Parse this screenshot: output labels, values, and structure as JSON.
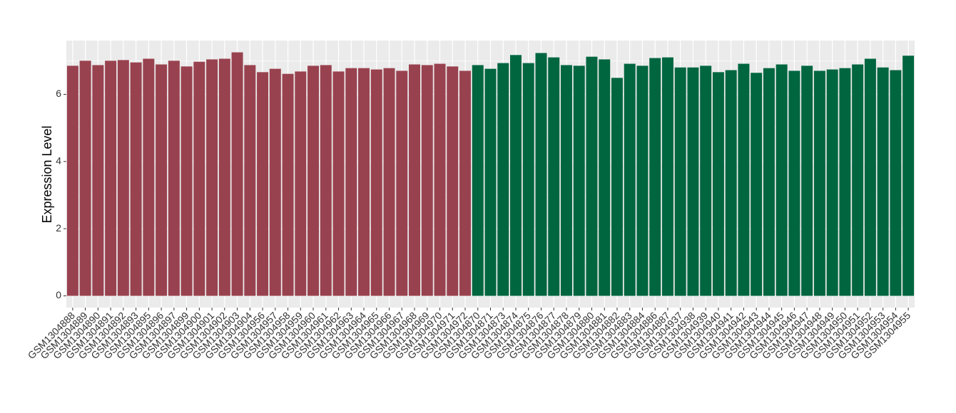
{
  "chart_data": {
    "type": "bar",
    "y_label": "Expression Level",
    "groups": [
      {
        "color": "#99424f",
        "categories": [
          "GSM1304888",
          "GSM1304889",
          "GSM1304890",
          "GSM1304891",
          "GSM1304892",
          "GSM1304893",
          "GSM1304895",
          "GSM1304896",
          "GSM1304897",
          "GSM1304899",
          "GSM1304900",
          "GSM1304901",
          "GSM1304902",
          "GSM1304903",
          "GSM1304904",
          "GSM1304956",
          "GSM1304957",
          "GSM1304958",
          "GSM1304959",
          "GSM1304960",
          "GSM1304961",
          "GSM1304962",
          "GSM1304963",
          "GSM1304964",
          "GSM1304965",
          "GSM1304966",
          "GSM1304967",
          "GSM1304968",
          "GSM1304969",
          "GSM1304970",
          "GSM1304971",
          "GSM1304972"
        ],
        "values": [
          6.85,
          7.0,
          6.87,
          7.0,
          7.02,
          6.95,
          7.06,
          6.89,
          7.0,
          6.83,
          6.97,
          7.04,
          7.06,
          7.25,
          6.87,
          6.66,
          6.76,
          6.61,
          6.68,
          6.85,
          6.87,
          6.68,
          6.78,
          6.78,
          6.74,
          6.78,
          6.7,
          6.89,
          6.87,
          6.91,
          6.83,
          6.7
        ]
      },
      {
        "color": "#006640",
        "categories": [
          "GSM1304870",
          "GSM1304871",
          "GSM1304873",
          "GSM1304874",
          "GSM1304875",
          "GSM1304876",
          "GSM1304877",
          "GSM1304878",
          "GSM1304879",
          "GSM1304880",
          "GSM1304881",
          "GSM1304882",
          "GSM1304883",
          "GSM1304884",
          "GSM1304886",
          "GSM1304887",
          "GSM1304937",
          "GSM1304938",
          "GSM1304939",
          "GSM1304940",
          "GSM1304941",
          "GSM1304942",
          "GSM1304943",
          "GSM1304944",
          "GSM1304945",
          "GSM1304946",
          "GSM1304947",
          "GSM1304948",
          "GSM1304949",
          "GSM1304950",
          "GSM1304951",
          "GSM1304952",
          "GSM1304953",
          "GSM1304954",
          "GSM1304955"
        ],
        "values": [
          6.87,
          6.76,
          6.93,
          7.17,
          6.93,
          7.23,
          7.1,
          6.87,
          6.85,
          7.12,
          7.04,
          6.49,
          6.91,
          6.85,
          7.08,
          7.1,
          6.8,
          6.8,
          6.85,
          6.66,
          6.72,
          6.91,
          6.64,
          6.78,
          6.89,
          6.7,
          6.85,
          6.7,
          6.74,
          6.78,
          6.89,
          7.06,
          6.8,
          6.72,
          7.15
        ]
      }
    ],
    "ylim": [
      -0.35,
      7.6
    ],
    "yticks": [
      0,
      2,
      4,
      6
    ],
    "minor_yticks": [
      1,
      3,
      5,
      7
    ],
    "grid": true
  }
}
